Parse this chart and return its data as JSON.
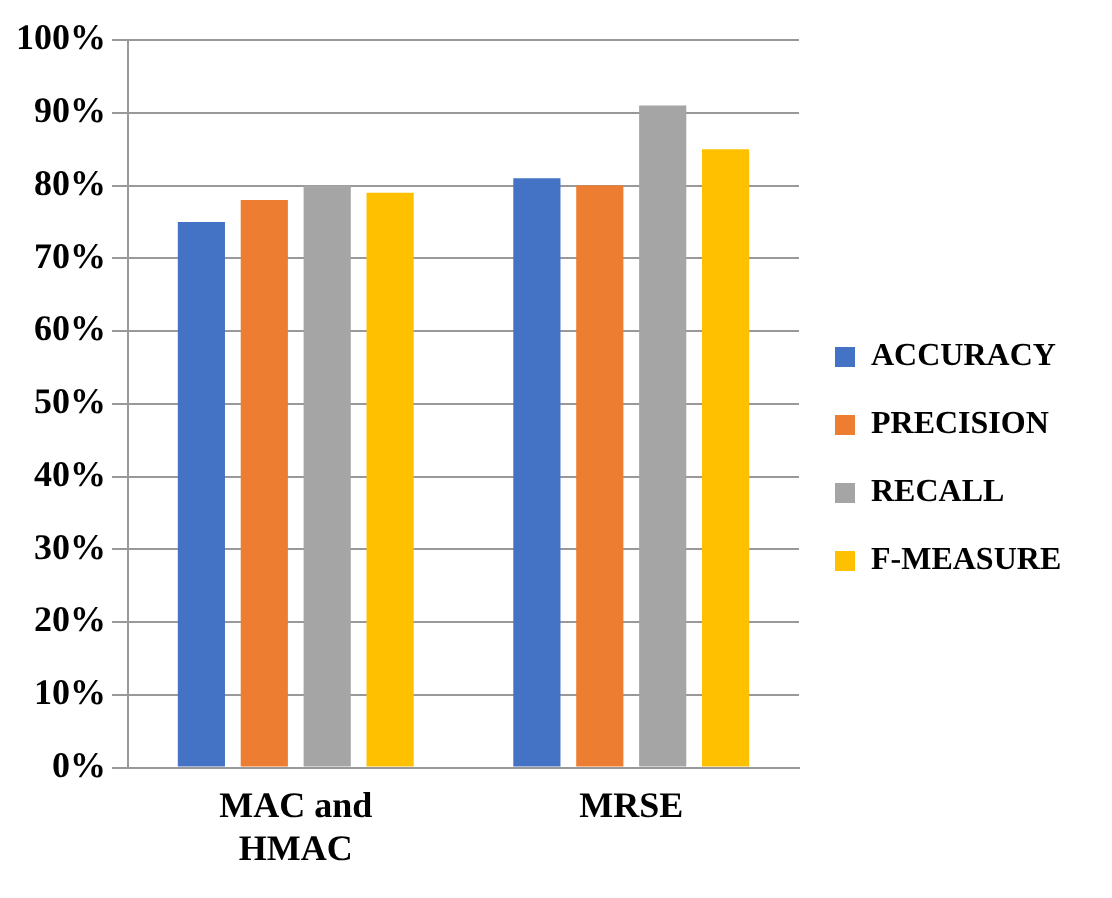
{
  "chart_data": {
    "type": "bar",
    "categories": [
      "MAC and HMAC",
      "MRSE"
    ],
    "series": [
      {
        "name": "ACCURACY",
        "color": "#4472c4",
        "values": [
          75,
          81
        ]
      },
      {
        "name": "PRECISION",
        "color": "#ed7d31",
        "values": [
          78,
          80
        ]
      },
      {
        "name": "RECALL",
        "color": "#a5a5a5",
        "values": [
          80,
          91
        ]
      },
      {
        "name": "F-MEASURE",
        "color": "#ffc000",
        "values": [
          79,
          85
        ]
      }
    ],
    "ylim": [
      0,
      100
    ],
    "yticks": [
      {
        "value": 0,
        "label": "0%"
      },
      {
        "value": 10,
        "label": "10%"
      },
      {
        "value": 20,
        "label": "20%"
      },
      {
        "value": 30,
        "label": "30%"
      },
      {
        "value": 40,
        "label": "40%"
      },
      {
        "value": 50,
        "label": "50%"
      },
      {
        "value": 60,
        "label": "60%"
      },
      {
        "value": 70,
        "label": "70%"
      },
      {
        "value": 80,
        "label": "80%"
      },
      {
        "value": 90,
        "label": "90%"
      },
      {
        "value": 100,
        "label": "100%"
      }
    ],
    "grid": "y",
    "legend": "right"
  }
}
